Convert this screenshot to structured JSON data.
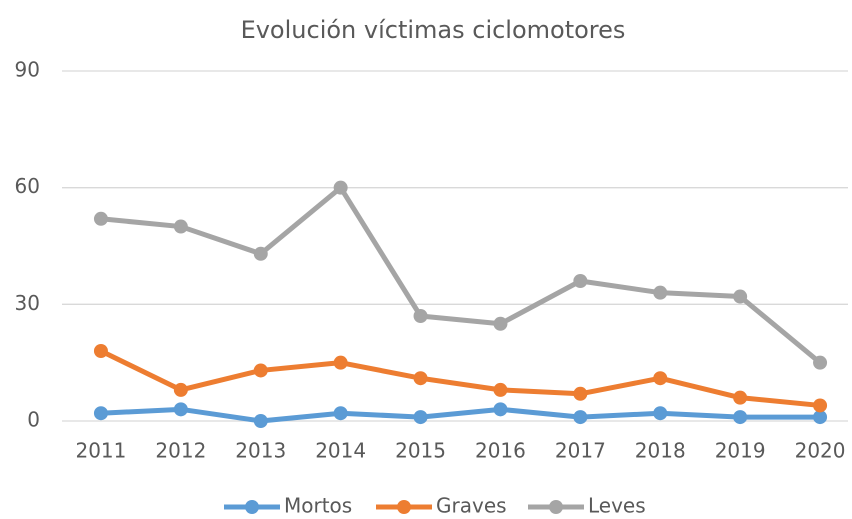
{
  "chart_data": {
    "type": "line",
    "title": "Evolución víctimas ciclomotores",
    "categories": [
      "2011",
      "2012",
      "2013",
      "2014",
      "2015",
      "2016",
      "2017",
      "2018",
      "2019",
      "2020"
    ],
    "series": [
      {
        "name": "Mortos",
        "color": "#5b9bd5",
        "values": [
          2,
          3,
          0,
          2,
          1,
          3,
          1,
          2,
          1,
          1
        ]
      },
      {
        "name": "Graves",
        "color": "#ed7d31",
        "values": [
          18,
          8,
          13,
          15,
          11,
          8,
          7,
          11,
          6,
          4
        ]
      },
      {
        "name": "Leves",
        "color": "#a5a5a5",
        "values": [
          52,
          50,
          43,
          60,
          27,
          25,
          36,
          33,
          32,
          15
        ]
      }
    ],
    "ylim": [
      0,
      90
    ],
    "yticks": [
      0,
      30,
      60,
      90
    ],
    "grid": true,
    "legend": "bottom"
  }
}
